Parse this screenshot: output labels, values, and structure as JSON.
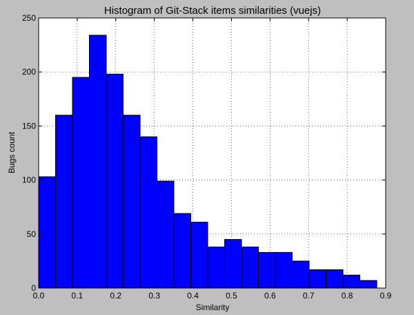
{
  "chart_data": {
    "type": "bar",
    "title": "Histogram of Git-Stack items similarities (vuejs)",
    "xlabel": "Similarity",
    "ylabel": "Bugs count",
    "xlim": [
      0.0,
      0.9
    ],
    "ylim": [
      0,
      250
    ],
    "xticks": [
      "0.0",
      "0.1",
      "0.2",
      "0.3",
      "0.4",
      "0.5",
      "0.6",
      "0.7",
      "0.8",
      "0.9"
    ],
    "yticks": [
      "0",
      "50",
      "100",
      "150",
      "200",
      "250"
    ],
    "grid": true,
    "legend": "none",
    "bin_edges": [
      0.0,
      0.0438,
      0.0877,
      0.1315,
      0.1754,
      0.2192,
      0.2631,
      0.3069,
      0.3507,
      0.3946,
      0.4384,
      0.4823,
      0.5261,
      0.57,
      0.6138,
      0.6576,
      0.7015,
      0.7453,
      0.7892,
      0.833,
      0.8769
    ],
    "values": [
      103,
      160,
      195,
      234,
      198,
      160,
      140,
      99,
      69,
      61,
      38,
      45,
      38,
      33,
      33,
      25,
      17,
      17,
      12,
      7
    ],
    "bar_color": "#0000ff",
    "edge_color": "#000000",
    "background_color": "#bfbfbf",
    "plot_background": "#ffffff"
  }
}
